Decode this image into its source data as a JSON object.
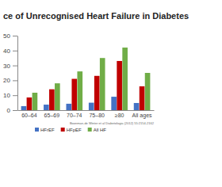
{
  "chart_data": {
    "type": "bar",
    "title": "ce of Unrecognised Heart Failure in Diabetes",
    "categories": [
      "60–64",
      "65–69",
      "70–74",
      "75–80",
      "≥80",
      "All ages"
    ],
    "series": [
      {
        "name": "HFrEF",
        "color": "#4472c4",
        "values": [
          2.7,
          3.7,
          4.3,
          5,
          9,
          4.8
        ]
      },
      {
        "name": "HFpEF",
        "color": "#c00000",
        "values": [
          8.5,
          14,
          21,
          23,
          33,
          16
        ]
      },
      {
        "name": "All HF",
        "color": "#70ad47",
        "values": [
          11.7,
          18,
          26,
          35,
          42,
          25
        ]
      }
    ],
    "ylim": [
      0,
      50
    ],
    "yticks": [
      0,
      10,
      20,
      30,
      40,
      50
    ],
    "grid": false,
    "legend": "bottom",
    "annotations": [
      "Boonman-de Winter et al Diabetologia (2012) 55:2154-2162"
    ]
  }
}
